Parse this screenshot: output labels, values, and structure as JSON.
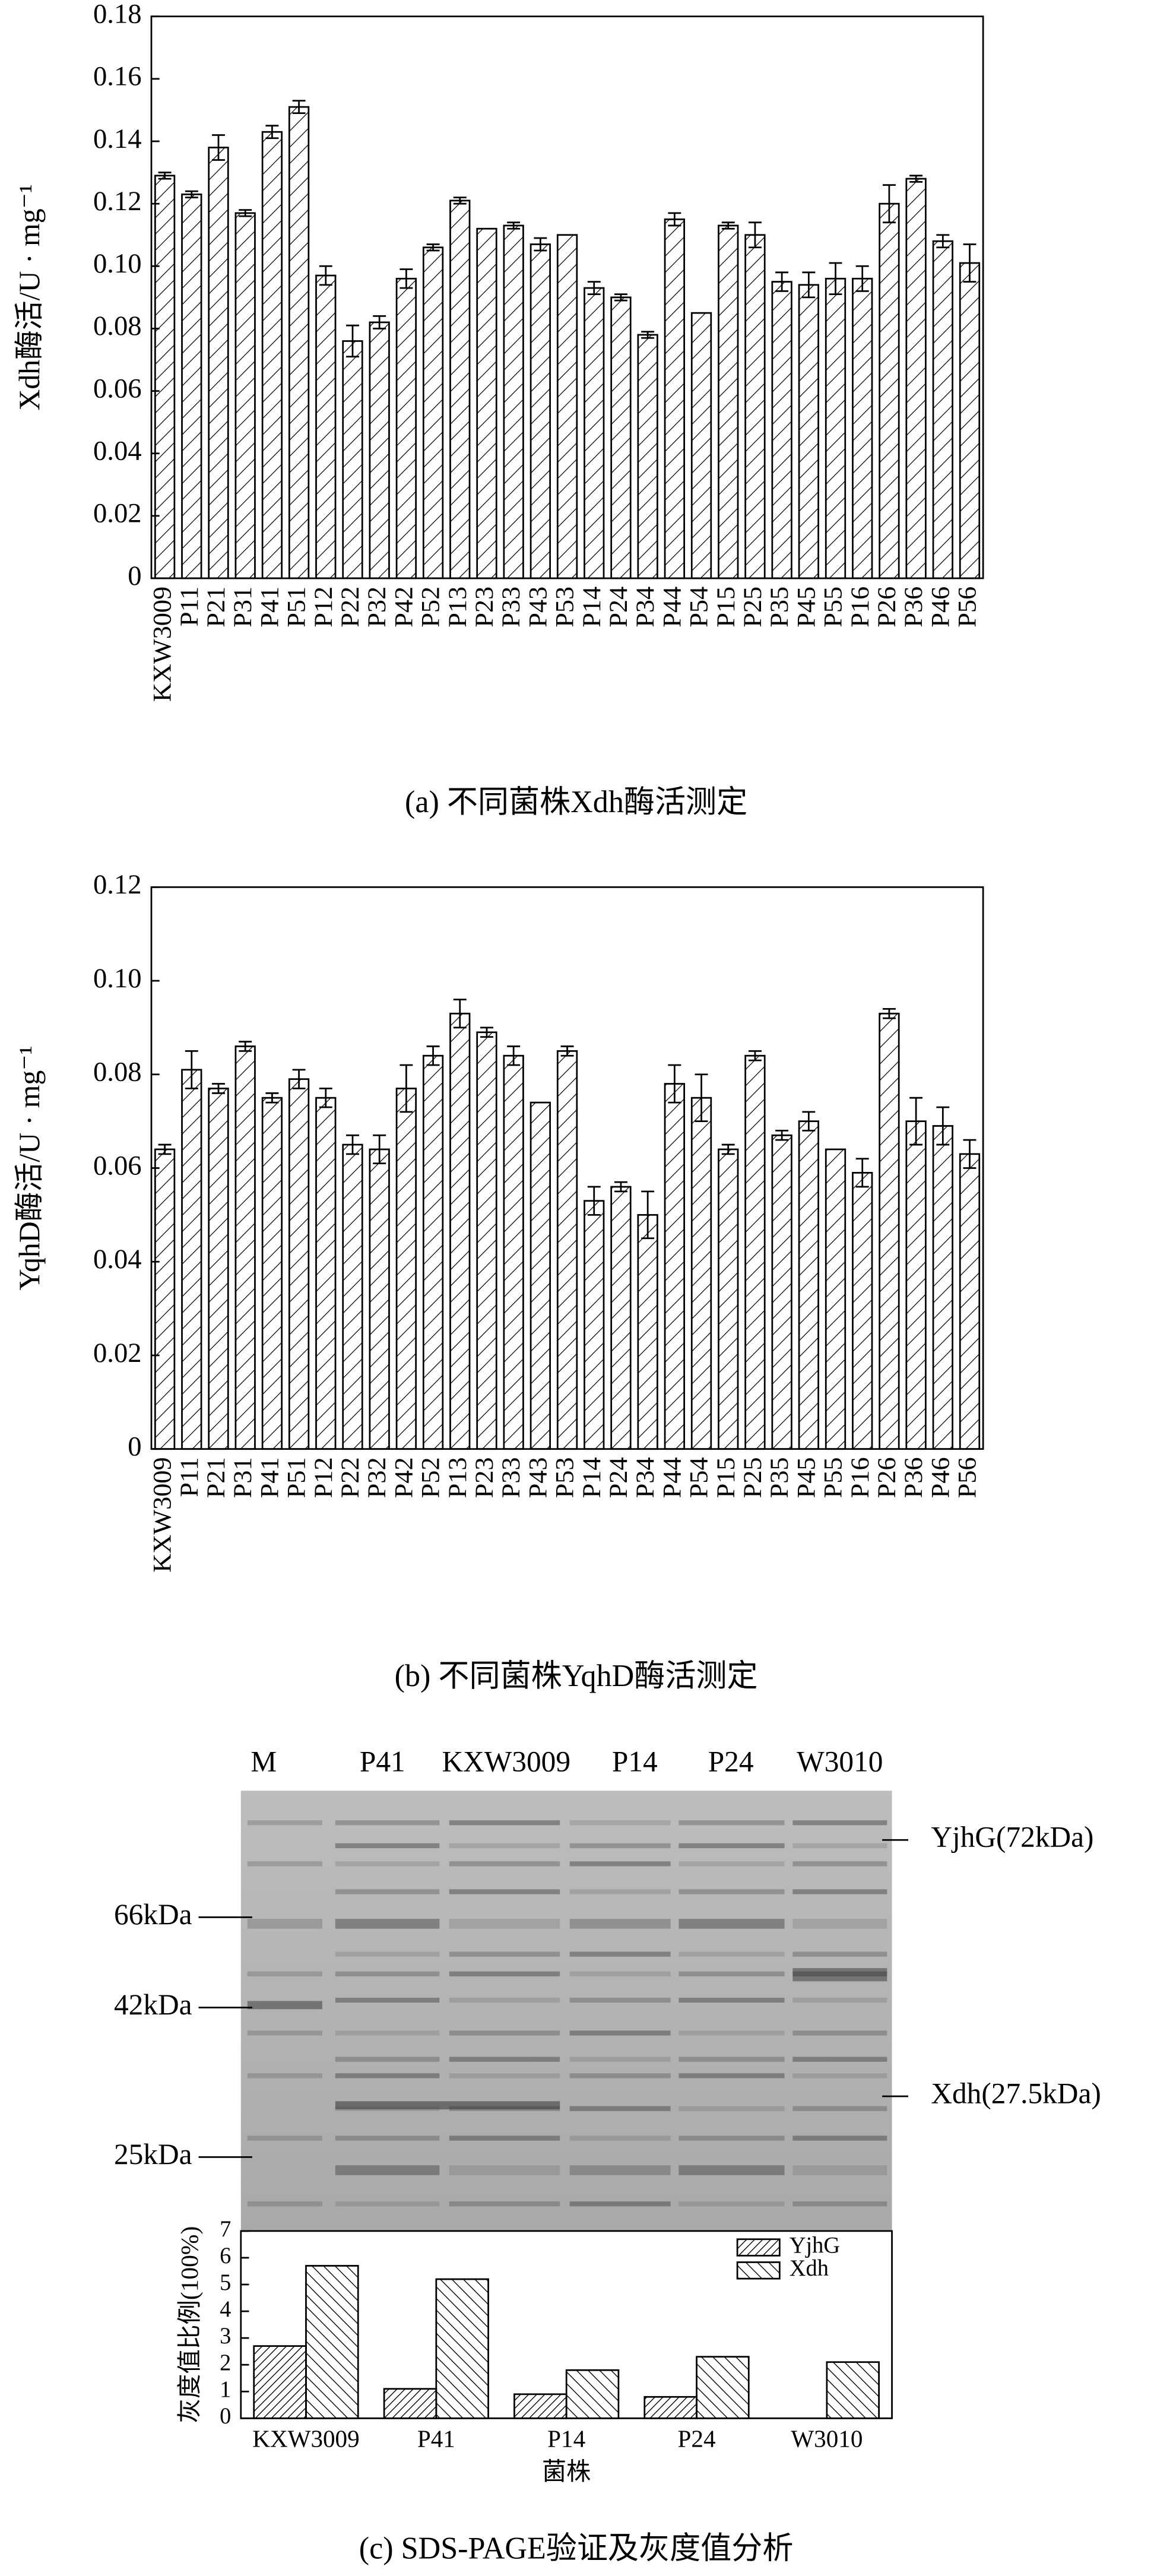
{
  "chart_data": [
    {
      "type": "bar",
      "caption": "(a) 不同菌株Xdh酶活测定",
      "ylabel": "Xdh酶活/U · mg⁻¹",
      "color": "#000000",
      "hatch": "/",
      "categories": [
        "KXW3009",
        "P11",
        "P21",
        "P31",
        "P41",
        "P51",
        "P12",
        "P22",
        "P32",
        "P42",
        "P52",
        "P13",
        "P23",
        "P33",
        "P43",
        "P53",
        "P14",
        "P24",
        "P34",
        "P44",
        "P54",
        "P15",
        "P25",
        "P35",
        "P45",
        "P55",
        "P16",
        "P26",
        "P36",
        "P46",
        "P56"
      ],
      "values": [
        0.129,
        0.123,
        0.138,
        0.117,
        0.143,
        0.151,
        0.097,
        0.076,
        0.082,
        0.096,
        0.106,
        0.121,
        0.112,
        0.113,
        0.107,
        0.11,
        0.093,
        0.09,
        0.078,
        0.115,
        0.085,
        0.113,
        0.11,
        0.095,
        0.094,
        0.096,
        0.096,
        0.12,
        0.128,
        0.108,
        0.101
      ],
      "errors": [
        0.001,
        0.001,
        0.004,
        0.001,
        0.002,
        0.002,
        0.003,
        0.005,
        0.002,
        0.003,
        0.001,
        0.001,
        0,
        0.001,
        0.002,
        0,
        0.002,
        0.001,
        0.001,
        0.002,
        0,
        0.001,
        0.004,
        0.003,
        0.004,
        0.005,
        0.004,
        0.006,
        0.001,
        0.002,
        0.006
      ],
      "ylim": [
        0,
        0.18
      ],
      "yticks": [
        0,
        0.02,
        0.04,
        0.06,
        0.08,
        {
          "value": 0.1,
          "label": "0.10"
        },
        0.12,
        0.14,
        0.16,
        0.18
      ]
    },
    {
      "type": "bar",
      "caption": "(b) 不同菌株YqhD酶活测定",
      "ylabel": "YqhD酶活/U · mg⁻¹",
      "color": "#000000",
      "hatch": "/",
      "categories": [
        "KXW3009",
        "P11",
        "P21",
        "P31",
        "P41",
        "P51",
        "P12",
        "P22",
        "P32",
        "P42",
        "P52",
        "P13",
        "P23",
        "P33",
        "P43",
        "P53",
        "P14",
        "P24",
        "P34",
        "P44",
        "P54",
        "P15",
        "P25",
        "P35",
        "P45",
        "P55",
        "P16",
        "P26",
        "P36",
        "P46",
        "P56"
      ],
      "values": [
        0.064,
        0.081,
        0.077,
        0.086,
        0.075,
        0.079,
        0.075,
        0.065,
        0.064,
        0.077,
        0.084,
        0.093,
        0.089,
        0.084,
        0.074,
        0.085,
        0.053,
        0.056,
        0.05,
        0.078,
        0.075,
        0.064,
        0.084,
        0.067,
        0.07,
        0.064,
        0.059,
        0.093,
        0.07,
        0.069,
        0.063
      ],
      "errors": [
        0.001,
        0.004,
        0.001,
        0.001,
        0.001,
        0.002,
        0.002,
        0.002,
        0.003,
        0.005,
        0.002,
        0.003,
        0.001,
        0.002,
        0,
        0.001,
        0.003,
        0.001,
        0.005,
        0.004,
        0.005,
        0.001,
        0.001,
        0.001,
        0.002,
        0,
        0.003,
        0.001,
        0.005,
        0.004,
        0.003
      ],
      "ylim": [
        0,
        0.12
      ],
      "yticks": [
        0,
        0.02,
        0.04,
        0.06,
        0.08,
        {
          "value": 0.1,
          "label": "0.10"
        },
        0.12
      ]
    },
    {
      "type": "grouped_bar",
      "caption": "(c) SDS-PAGE验证及灰度值分析",
      "ylabel": "灰度值比例(100%)",
      "xlabel": "菌株",
      "legend": "upper right",
      "categories": [
        "KXW3009",
        "P41",
        "P14",
        "P24",
        "W3010"
      ],
      "series": [
        {
          "name": "YjhG",
          "color": "#000000",
          "hatch": "dense",
          "values": [
            2.7,
            1.1,
            0.9,
            0.8,
            null
          ]
        },
        {
          "name": "Xdh",
          "color": "#000000",
          "hatch": "back",
          "values": [
            5.7,
            5.2,
            1.8,
            2.3,
            2.1
          ]
        }
      ],
      "ylim": [
        0,
        7
      ],
      "yticks": [
        0,
        1,
        2,
        3,
        4,
        5,
        6,
        7
      ]
    }
  ],
  "gel": {
    "lanes": [
      "M",
      "P41",
      "KXW3009",
      "P14",
      "P24",
      "W3010"
    ],
    "markers": [
      "66kDa",
      "42kDa",
      "25kDa"
    ],
    "bands": [
      "YjhG(72kDa)",
      "Xdh(27.5kDa)"
    ]
  }
}
